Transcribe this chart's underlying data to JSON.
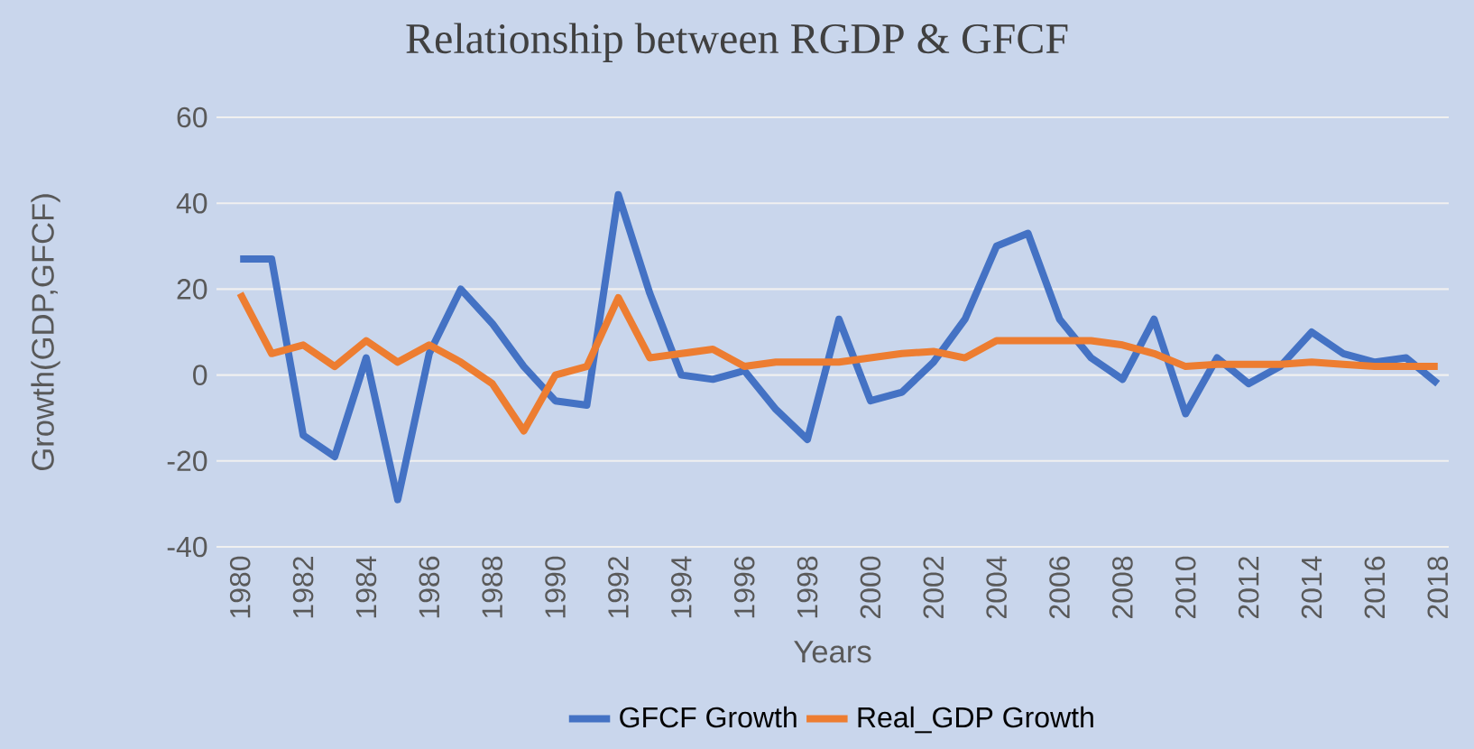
{
  "chart_data": {
    "type": "line",
    "title": "Relationship between RGDP & GFCF",
    "xlabel": "Years",
    "ylabel": "Growth(GDP,GFCF)",
    "categories": [
      "1980",
      null,
      "1982",
      null,
      "1984",
      null,
      "1986",
      null,
      "1988",
      null,
      "1990",
      null,
      "1992",
      null,
      "1994",
      null,
      "1996",
      null,
      "1998",
      null,
      "2000",
      null,
      "2002",
      null,
      "2004",
      null,
      "2006",
      null,
      "2008",
      null,
      "2010",
      null,
      "2012",
      null,
      "2014",
      null,
      "2016",
      null,
      "2018"
    ],
    "series": [
      {
        "name": "GFCF Growth",
        "color": "#4472c4",
        "values": [
          27,
          27,
          -14,
          -19,
          4,
          -29,
          5,
          20,
          12,
          2,
          -6,
          -7,
          42,
          19,
          0,
          -1,
          1,
          -8,
          -15,
          13,
          -6,
          -4,
          3,
          13,
          30,
          33,
          13,
          4,
          -1,
          13,
          -9,
          4,
          -2,
          2,
          10,
          5,
          3,
          4,
          -2
        ]
      },
      {
        "name": "Real_GDP Growth",
        "color": "#ed7d31",
        "values": [
          19,
          5,
          7,
          2,
          8,
          3,
          7,
          3,
          -2,
          -13,
          0,
          2,
          18,
          4,
          5,
          6,
          2,
          3,
          3,
          3,
          4,
          5,
          5.5,
          4,
          8,
          8,
          8,
          8,
          7,
          5,
          2,
          2.5,
          2.5,
          2.5,
          3,
          2.5,
          2,
          2,
          2
        ]
      }
    ],
    "ylim": [
      -40,
      60
    ],
    "yticks": [
      -40,
      -20,
      0,
      20,
      40,
      60
    ],
    "grid": "y",
    "legend": "bottom",
    "marker": "none",
    "line_style": "solid"
  }
}
